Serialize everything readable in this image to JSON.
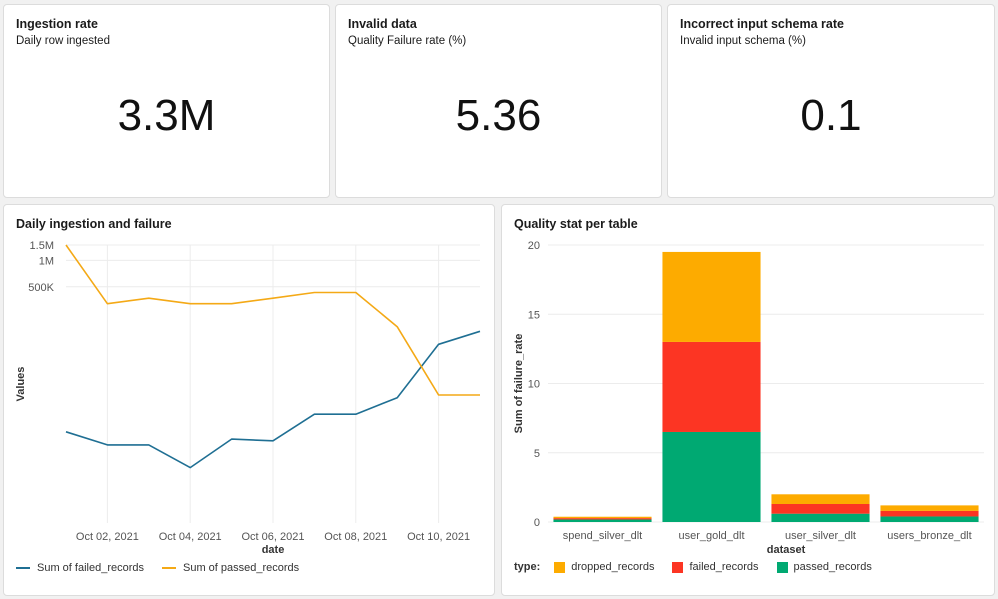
{
  "counters": [
    {
      "title": "Ingestion rate",
      "subtitle": "Daily row ingested",
      "value": "3.3M"
    },
    {
      "title": "Invalid data",
      "subtitle": "Quality Failure rate (%)",
      "value": "5.36"
    },
    {
      "title": "Incorrect input schema rate",
      "subtitle": "Invalid input schema (%)",
      "value": "0.1"
    }
  ],
  "line_card": {
    "title": "Daily ingestion and failure"
  },
  "bar_card": {
    "title": "Quality stat per table"
  },
  "colors": {
    "failed_line": "#1f6f93",
    "passed_line": "#f4a916",
    "dropped": "#fdab00",
    "failed": "#fc3523",
    "passed": "#00a972"
  },
  "chart_data": [
    {
      "type": "line",
      "title": "Daily ingestion and failure",
      "xlabel": "date",
      "ylabel": "Values",
      "yscale": "log",
      "x": [
        "Oct 01, 2021",
        "Oct 02, 2021",
        "Oct 03, 2021",
        "Oct 04, 2021",
        "Oct 05, 2021",
        "Oct 06, 2021",
        "Oct 07, 2021",
        "Oct 08, 2021",
        "Oct 09, 2021",
        "Oct 10, 2021",
        "Oct 11, 2021"
      ],
      "x_ticks": [
        "Oct 02, 2021",
        "Oct 04, 2021",
        "Oct 06, 2021",
        "Oct 08, 2021",
        "Oct 10, 2021"
      ],
      "y_ticks": [
        {
          "label": "1.5M",
          "value": 1500000
        },
        {
          "label": "1M",
          "value": 1000000
        },
        {
          "label": "500K",
          "value": 500000
        }
      ],
      "ylim": [
        1000,
        1500000
      ],
      "series": [
        {
          "name": "Sum of failed_records",
          "values": [
            11000,
            7800,
            7800,
            4300,
            9100,
            8700,
            17500,
            17500,
            27000,
            110000,
            155000
          ]
        },
        {
          "name": "Sum of passed_records",
          "values": [
            1500000,
            320000,
            370000,
            320000,
            320000,
            370000,
            430000,
            430000,
            175000,
            29000,
            29000
          ]
        }
      ]
    },
    {
      "type": "bar",
      "stacked": true,
      "title": "Quality stat per table",
      "xlabel": "dataset",
      "ylabel": "Sum of failure_rate",
      "legend_title": "type:",
      "categories": [
        "spend_silver_dlt",
        "user_gold_dlt",
        "user_silver_dlt",
        "users_bronze_dlt"
      ],
      "ylim": [
        0,
        20
      ],
      "y_ticks": [
        0,
        5,
        10,
        15,
        20
      ],
      "series": [
        {
          "name": "passed_records",
          "values": [
            0.18,
            6.5,
            0.6,
            0.4
          ]
        },
        {
          "name": "failed_records",
          "values": [
            0.1,
            6.5,
            0.7,
            0.4
          ]
        },
        {
          "name": "dropped_records",
          "values": [
            0.1,
            6.5,
            0.7,
            0.4
          ]
        }
      ],
      "legend_order": [
        "dropped_records",
        "failed_records",
        "passed_records"
      ]
    }
  ]
}
